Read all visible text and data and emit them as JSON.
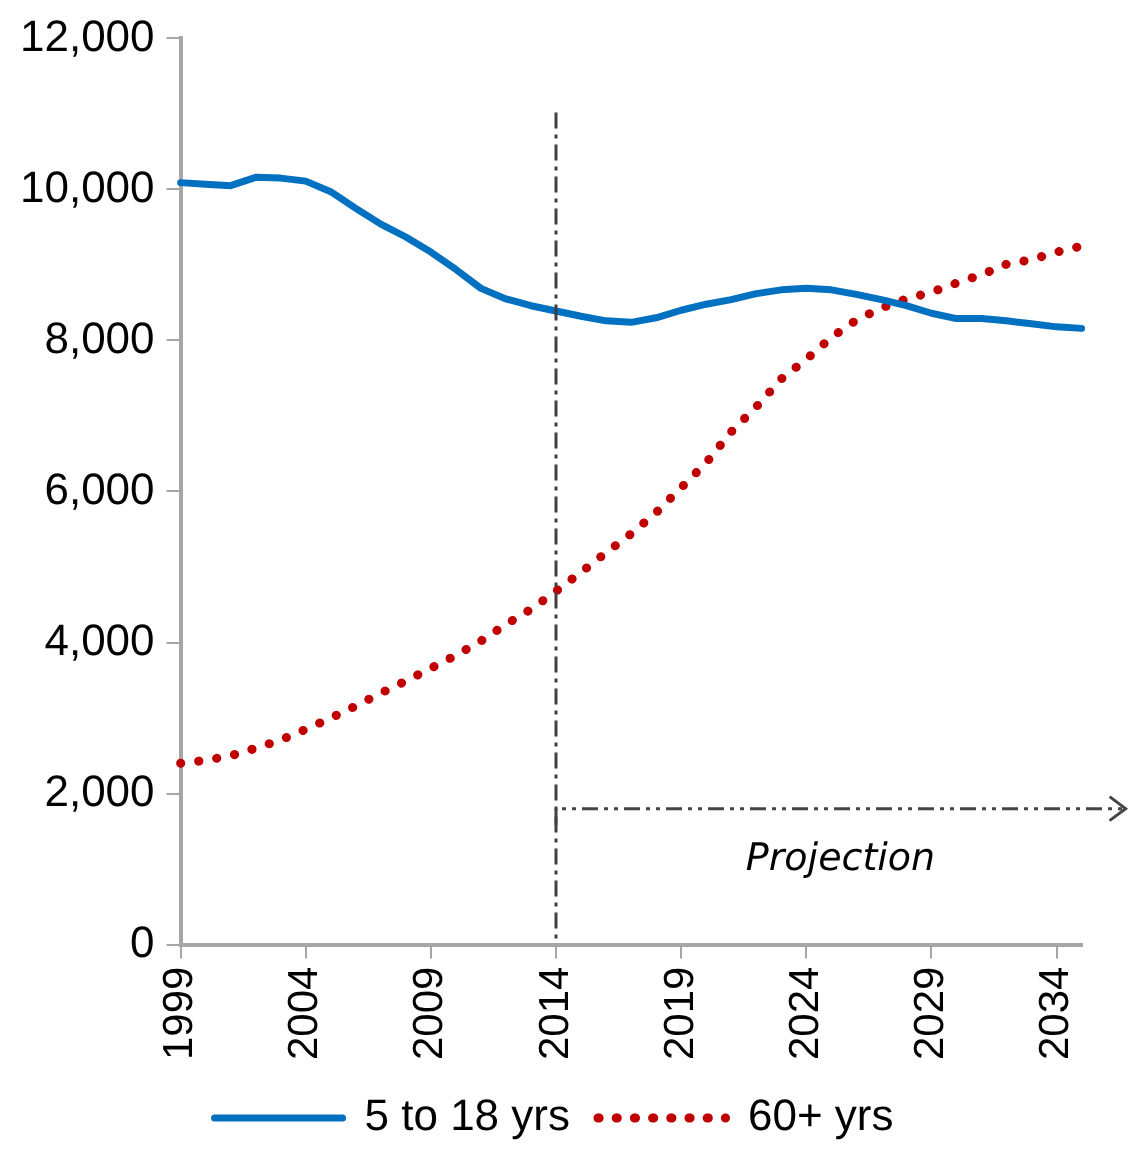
{
  "chart_data": {
    "type": "line",
    "categories": [
      "1999",
      null,
      null,
      null,
      null,
      "2004",
      null,
      null,
      null,
      null,
      "2009",
      null,
      null,
      null,
      null,
      "2014",
      null,
      null,
      null,
      null,
      "2019",
      null,
      null,
      null,
      null,
      "2024",
      null,
      null,
      null,
      null,
      "2029",
      null,
      null,
      null,
      null,
      "2034",
      null
    ],
    "series": [
      {
        "name": "5 to 18 yrs",
        "color": "#0070c0",
        "line_style": "solid",
        "values": [
          10090,
          10070,
          10050,
          10160,
          10150,
          10110,
          9970,
          9750,
          9540,
          9370,
          9170,
          8940,
          8690,
          8550,
          8460,
          8390,
          8320,
          8260,
          8240,
          8300,
          8400,
          8480,
          8540,
          8620,
          8670,
          8690,
          8670,
          8610,
          8540,
          8460,
          8360,
          8290,
          8290,
          8260,
          8220,
          8180,
          8160
        ]
      },
      {
        "name": "60+ yrs",
        "color": "#c00000",
        "line_style": "dotted",
        "values": [
          2400,
          2440,
          2500,
          2600,
          2710,
          2850,
          3000,
          3160,
          3330,
          3490,
          3660,
          3830,
          4020,
          4240,
          4440,
          4680,
          4930,
          5190,
          5440,
          5720,
          6050,
          6380,
          6790,
          7120,
          7490,
          7750,
          8040,
          8270,
          8430,
          8550,
          8640,
          8760,
          8870,
          9010,
          9070,
          9170,
          9250
        ]
      }
    ],
    "ylim": [
      0,
      12000
    ],
    "yticks": [
      0,
      {
        "value": 2000,
        "label": "2,000"
      },
      {
        "value": 4000,
        "label": "4,000"
      },
      {
        "value": 6000,
        "label": "6,000"
      },
      {
        "value": 8000,
        "label": "8,000"
      },
      {
        "value": 10000,
        "label": "10,000"
      },
      {
        "value": 12000,
        "label": "12,000"
      }
    ],
    "grid": false,
    "legend": "bottom",
    "marker": "none",
    "ref_lines": [
      {
        "axis": "x",
        "value": "2014",
        "line_style": "dashed",
        "color": "#404040"
      }
    ],
    "annotations": [
      "Projection"
    ]
  }
}
